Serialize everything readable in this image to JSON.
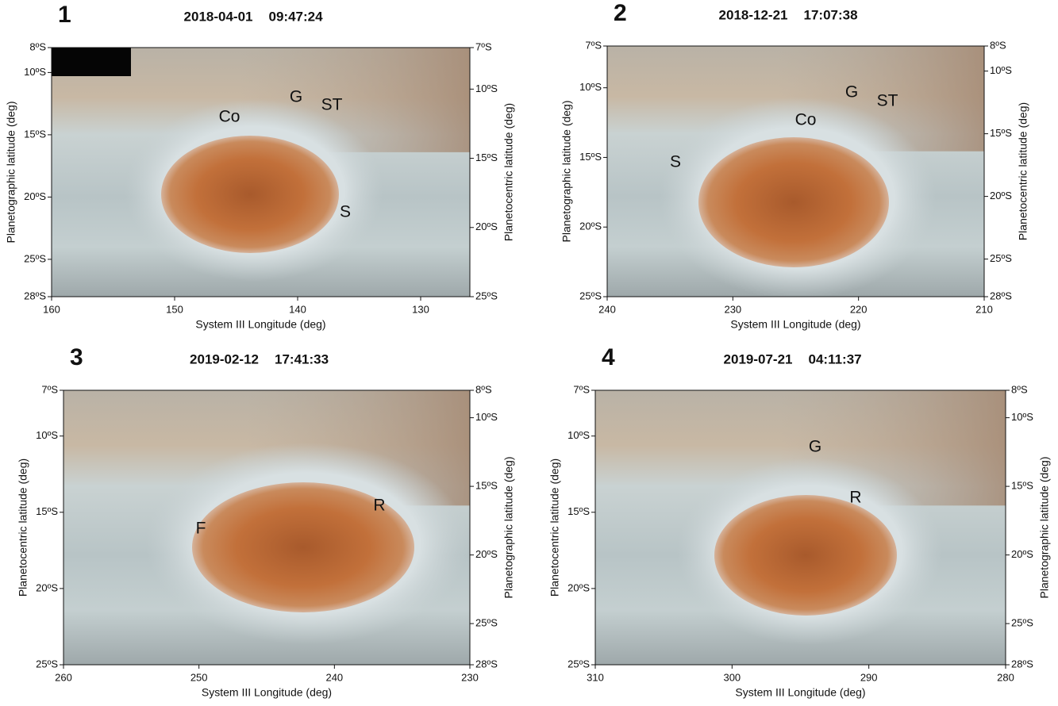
{
  "chart_data": [
    {
      "type": "image",
      "panel_label": "1",
      "date": "2018-04-01",
      "time": "09:47:24",
      "xlabel": "System III Longitude (deg)",
      "ylabel": "Planetographic latitude (deg)",
      "y2label": "Planetocentric latitude (deg)",
      "xlim": [
        160,
        126
      ],
      "xticks": [
        160,
        150,
        140,
        130
      ],
      "ylim": [
        -28,
        -8
      ],
      "yticks": [
        {
          "value": -8,
          "label": "8ºS"
        },
        {
          "value": -10,
          "label": "10ºS"
        },
        {
          "value": -15,
          "label": "15ºS"
        },
        {
          "value": -20,
          "label": "20ºS"
        },
        {
          "value": -25,
          "label": "25ºS"
        },
        {
          "value": -28,
          "label": "28ºS"
        }
      ],
      "y2lim": [
        -25,
        -7
      ],
      "y2ticks": [
        {
          "value": -7,
          "label": "7ºS"
        },
        {
          "value": -10,
          "label": "10ºS"
        },
        {
          "value": -15,
          "label": "15ºS"
        },
        {
          "value": -20,
          "label": "20ºS"
        },
        {
          "value": -25,
          "label": "25ºS"
        }
      ],
      "annotations": [
        "Co",
        "G",
        "ST",
        "S"
      ]
    },
    {
      "type": "image",
      "panel_label": "2",
      "date": "2018-12-21",
      "time": "17:07:38",
      "xlabel": "System III Longitude (deg)",
      "ylabel": "Planetographic latitude (deg)",
      "y2label": "Planetocentric latitude (deg)",
      "xlim": [
        240,
        210
      ],
      "xticks": [
        240,
        230,
        220,
        210
      ],
      "ylim": [
        -25,
        -7
      ],
      "yticks": [
        {
          "value": -7,
          "label": "7ºS"
        },
        {
          "value": -10,
          "label": "10ºS"
        },
        {
          "value": -15,
          "label": "15ºS"
        },
        {
          "value": -20,
          "label": "20ºS"
        },
        {
          "value": -25,
          "label": "25ºS"
        }
      ],
      "y2lim": [
        -28,
        -8
      ],
      "y2ticks": [
        {
          "value": -8,
          "label": "8ºS"
        },
        {
          "value": -10,
          "label": "10ºS"
        },
        {
          "value": -15,
          "label": "15ºS"
        },
        {
          "value": -20,
          "label": "20ºS"
        },
        {
          "value": -25,
          "label": "25ºS"
        },
        {
          "value": -28,
          "label": "28ºS"
        }
      ],
      "annotations": [
        "G",
        "ST",
        "Co",
        "S"
      ]
    },
    {
      "type": "image",
      "panel_label": "3",
      "date": "2019-02-12",
      "time": "17:41:33",
      "xlabel": "System III Longitude (deg)",
      "ylabel": "Planetocentric latitude (deg)",
      "y2label": "Planetographic latitude (deg)",
      "xlim": [
        260,
        230
      ],
      "xticks": [
        260,
        250,
        240,
        230
      ],
      "ylim": [
        -25,
        -7
      ],
      "yticks": [
        {
          "value": -7,
          "label": "7ºS"
        },
        {
          "value": -10,
          "label": "10ºS"
        },
        {
          "value": -15,
          "label": "15ºS"
        },
        {
          "value": -20,
          "label": "20ºS"
        },
        {
          "value": -25,
          "label": "25ºS"
        }
      ],
      "y2lim": [
        -28,
        -8
      ],
      "y2ticks": [
        {
          "value": -8,
          "label": "8ºS"
        },
        {
          "value": -10,
          "label": "10ºS"
        },
        {
          "value": -15,
          "label": "15ºS"
        },
        {
          "value": -20,
          "label": "20ºS"
        },
        {
          "value": -25,
          "label": "25ºS"
        },
        {
          "value": -28,
          "label": "28ºS"
        }
      ],
      "annotations": [
        "R",
        "F"
      ]
    },
    {
      "type": "image",
      "panel_label": "4",
      "date": "2019-07-21",
      "time": "04:11:37",
      "xlabel": "System III Longitude (deg)",
      "ylabel": "Planetocentric latitude (deg)",
      "y2label": "Planetographic latitude (deg)",
      "xlim": [
        310,
        280
      ],
      "xticks": [
        310,
        300,
        290,
        280
      ],
      "ylim": [
        -25,
        -7
      ],
      "yticks": [
        {
          "value": -7,
          "label": "7ºS"
        },
        {
          "value": -10,
          "label": "10ºS"
        },
        {
          "value": -15,
          "label": "15ºS"
        },
        {
          "value": -20,
          "label": "20ºS"
        },
        {
          "value": -25,
          "label": "25ºS"
        }
      ],
      "y2lim": [
        -28,
        -8
      ],
      "y2ticks": [
        {
          "value": -8,
          "label": "8ºS"
        },
        {
          "value": -10,
          "label": "10ºS"
        },
        {
          "value": -15,
          "label": "15ºS"
        },
        {
          "value": -20,
          "label": "20ºS"
        },
        {
          "value": -25,
          "label": "25ºS"
        },
        {
          "value": -28,
          "label": "28ºS"
        }
      ],
      "annotations": [
        "G",
        "R"
      ]
    }
  ]
}
